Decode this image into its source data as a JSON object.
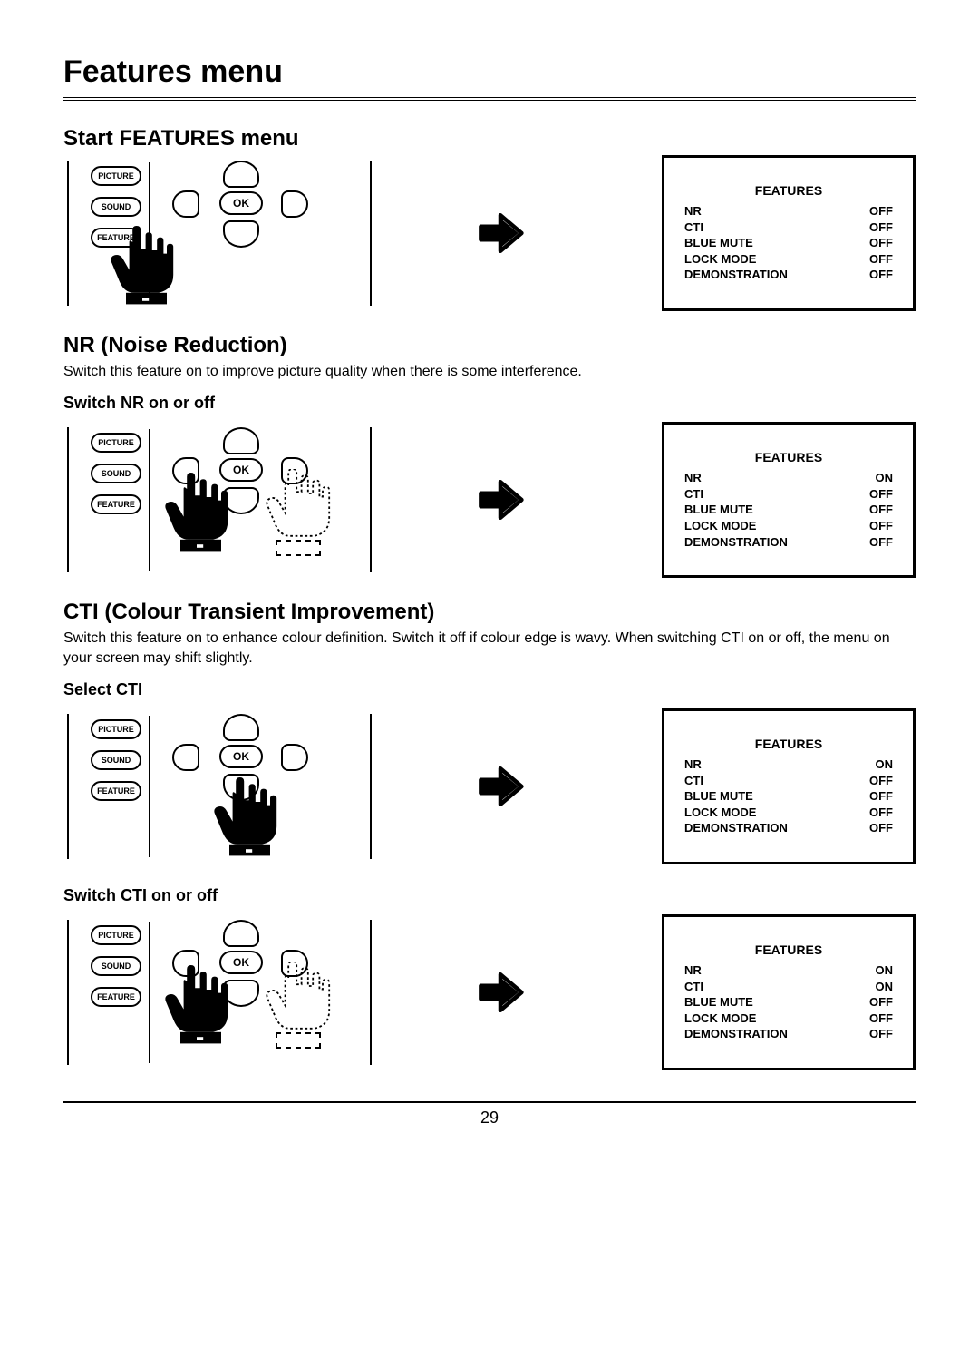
{
  "page_title": "Features menu",
  "page_number": "29",
  "remote_labels": {
    "picture": "PICTURE",
    "sound": "SOUND",
    "feature": "FEATURE",
    "ok": "OK"
  },
  "features_menu": {
    "title": "FEATURES",
    "items": [
      "NR",
      "CTI",
      "BLUE MUTE",
      "LOCK MODE",
      "DEMONSTRATION"
    ]
  },
  "sections": [
    {
      "title": "Start FEATURES menu",
      "desc": "",
      "steps": [
        {
          "sub": "",
          "hand_target": "feature",
          "show_dotted_hand": false,
          "values": [
            "OFF",
            "OFF",
            "OFF",
            "OFF",
            "OFF"
          ]
        }
      ]
    },
    {
      "title": "NR (Noise Reduction)",
      "desc": "Switch this feature  on to improve picture quality when there is some interference.",
      "steps": [
        {
          "sub": "Switch NR on or off",
          "hand_target": "left",
          "show_dotted_hand": true,
          "values": [
            "ON",
            "OFF",
            "OFF",
            "OFF",
            "OFF"
          ]
        }
      ]
    },
    {
      "title": "CTI (Colour Transient Improvement)",
      "desc": "Switch this feature on to enhance colour definition. Switch it off if colour edge is wavy. When switching CTI on or off, the menu on your screen may shift slightly.",
      "steps": [
        {
          "sub": "Select CTI",
          "hand_target": "down",
          "show_dotted_hand": false,
          "values": [
            "ON",
            "OFF",
            "OFF",
            "OFF",
            "OFF"
          ]
        },
        {
          "sub": "Switch CTI on or off",
          "hand_target": "left",
          "show_dotted_hand": true,
          "values": [
            "ON",
            "ON",
            "OFF",
            "OFF",
            "OFF"
          ]
        }
      ]
    }
  ]
}
